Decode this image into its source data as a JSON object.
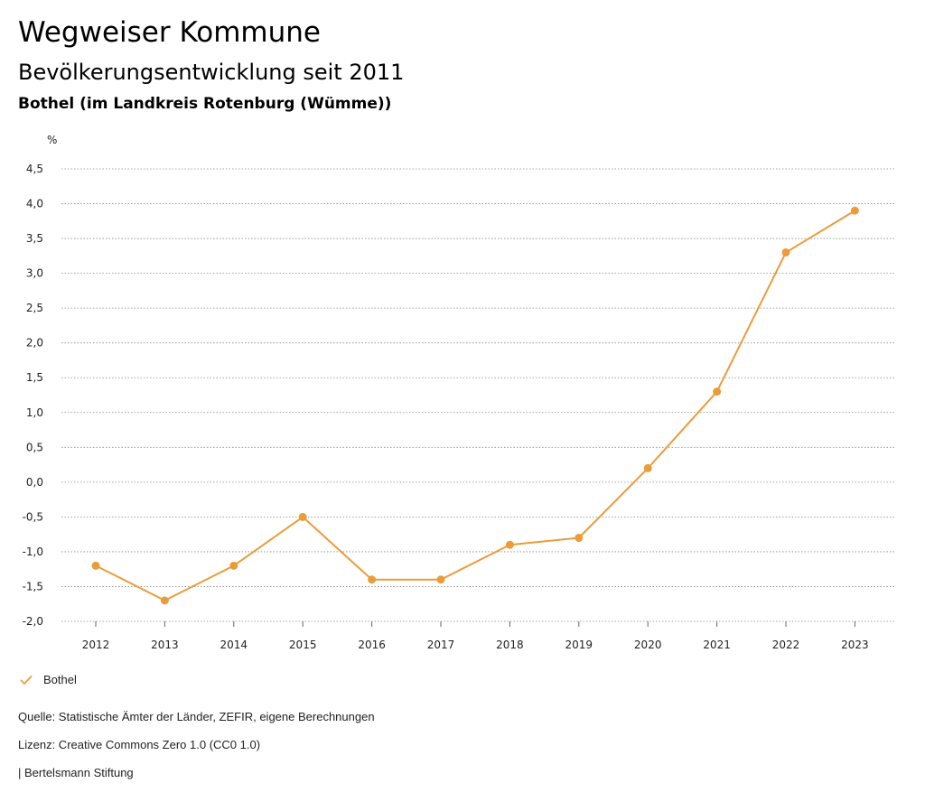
{
  "header": {
    "title": "Wegweiser Kommune",
    "subtitle": "Bevölkerungsentwicklung seit 2011",
    "location": "Bothel (im Landkreis Rotenburg (Wümme))"
  },
  "chart_data": {
    "type": "line",
    "title": "Bevölkerungsentwicklung seit 2011",
    "ylabel": "%",
    "xlabel": "",
    "x": [
      "2012",
      "2013",
      "2014",
      "2015",
      "2016",
      "2017",
      "2018",
      "2019",
      "2020",
      "2021",
      "2022",
      "2023"
    ],
    "series": [
      {
        "name": "Bothel",
        "color": "#eb9c3a",
        "values": [
          -1.2,
          -1.7,
          -1.2,
          -0.5,
          -1.4,
          -1.4,
          -0.9,
          -0.8,
          0.2,
          1.3,
          3.3,
          3.9
        ]
      }
    ],
    "ylim": [
      -2.0,
      4.5
    ],
    "yticks": [
      4.5,
      4.0,
      3.5,
      3.0,
      2.5,
      2.0,
      1.5,
      1.0,
      0.5,
      0.0,
      -0.5,
      -1.0,
      -1.5,
      -2.0
    ],
    "ytick_labels": [
      "4,5",
      "4,0",
      "3,5",
      "3,0",
      "2,5",
      "2,0",
      "1,5",
      "1,0",
      "0,5",
      "0,0",
      "-0,5",
      "-1,0",
      "-1,5",
      "-2,0"
    ],
    "grid": true,
    "legend_position": "bottom-left"
  },
  "legend": {
    "label": "Bothel"
  },
  "footer": {
    "source": "Quelle: Statistische Ämter der Länder, ZEFIR, eigene Berechnungen",
    "license": "Lizenz: Creative Commons Zero 1.0 (CC0 1.0)",
    "publisher": "| Bertelsmann Stiftung"
  }
}
